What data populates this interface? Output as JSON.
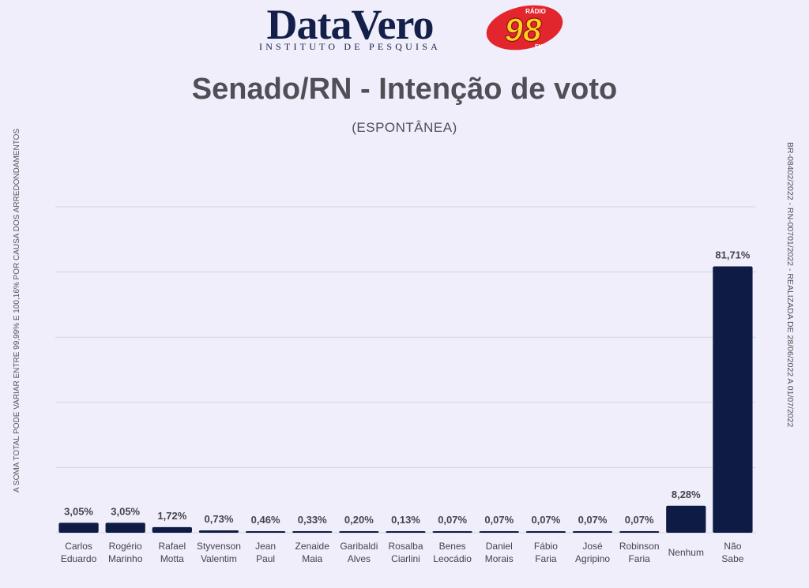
{
  "brand": {
    "name": "DataVero",
    "tagline": "INSTITUTO DE PESQUISA",
    "radio_top": "RÁDIO",
    "radio_number": "98",
    "radio_band": "FM",
    "color_navy": "#14204a",
    "color_radio_red": "#e3262d",
    "color_radio_yellow": "#ffd21f"
  },
  "title": "Senado/RN - Intenção de voto",
  "subtitle": "(ESPONTÂNEA)",
  "side_note_left": "A SOMA TOTAL  PODE VARIAR ENTRE 99,99% E 100,16% POR CAUSA DOS ARREDONDAMENTOS",
  "side_note_right": "BR-08402/2022 - RN-00701/2022 - REALIZADA DE 28/06/2022 A 01/07/2022",
  "chart_data": {
    "type": "bar",
    "title": "Senado/RN - Intenção de voto",
    "subtitle": "(ESPONTÂNEA)",
    "categories": [
      [
        "Carlos",
        "Eduardo"
      ],
      [
        "Rogério",
        "Marinho"
      ],
      [
        "Rafael",
        "Motta"
      ],
      [
        "Styvenson",
        "Valentim"
      ],
      [
        "Jean",
        "Paul"
      ],
      [
        "Zenaide",
        "Maia"
      ],
      [
        "Garibaldi",
        "Alves"
      ],
      [
        "Rosalba",
        "Ciarlini"
      ],
      [
        "Benes",
        "Leocádio"
      ],
      [
        "Daniel",
        "Morais"
      ],
      [
        "Fábio",
        "Faria"
      ],
      [
        "José",
        "Agripino"
      ],
      [
        "Robinson",
        "Faria"
      ],
      [
        "Nenhum"
      ],
      [
        "Não",
        "Sabe"
      ]
    ],
    "values": [
      3.05,
      3.05,
      1.72,
      0.73,
      0.46,
      0.33,
      0.2,
      0.13,
      0.07,
      0.07,
      0.07,
      0.07,
      0.07,
      8.28,
      81.71
    ],
    "value_labels": [
      "3,05%",
      "3,05%",
      "1,72%",
      "0,73%",
      "0,46%",
      "0,33%",
      "0,20%",
      "0,13%",
      "0,07%",
      "0,07%",
      "0,07%",
      "0,07%",
      "0,07%",
      "8,28%",
      "81,71%"
    ],
    "ylim": [
      0,
      100
    ],
    "grid": true,
    "bar_color": "#0d1b45",
    "grid_color": "#d6d6e2"
  }
}
